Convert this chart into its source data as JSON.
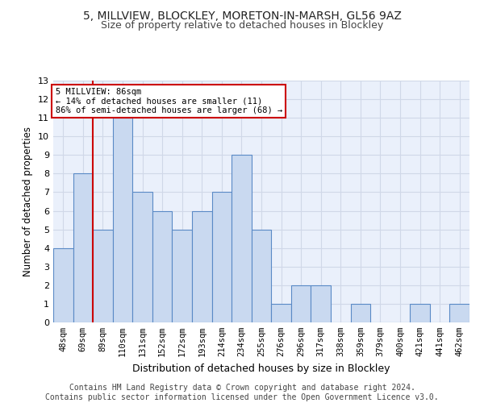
{
  "title1": "5, MILLVIEW, BLOCKLEY, MORETON-IN-MARSH, GL56 9AZ",
  "title2": "Size of property relative to detached houses in Blockley",
  "xlabel": "Distribution of detached houses by size in Blockley",
  "ylabel": "Number of detached properties",
  "categories": [
    "48sqm",
    "69sqm",
    "89sqm",
    "110sqm",
    "131sqm",
    "152sqm",
    "172sqm",
    "193sqm",
    "214sqm",
    "234sqm",
    "255sqm",
    "276sqm",
    "296sqm",
    "317sqm",
    "338sqm",
    "359sqm",
    "379sqm",
    "400sqm",
    "421sqm",
    "441sqm",
    "462sqm"
  ],
  "values": [
    4,
    8,
    5,
    11,
    7,
    6,
    5,
    6,
    7,
    9,
    5,
    1,
    2,
    2,
    0,
    1,
    0,
    0,
    1,
    0,
    1
  ],
  "bar_color": "#c9d9f0",
  "bar_edge_color": "#5a8ac6",
  "vline_index": 2,
  "vline_color": "#cc0000",
  "annotation_text": "5 MILLVIEW: 86sqm\n← 14% of detached houses are smaller (11)\n86% of semi-detached houses are larger (68) →",
  "annotation_box_color": "#ffffff",
  "annotation_box_edge_color": "#cc0000",
  "ylim": [
    0,
    13
  ],
  "yticks": [
    0,
    1,
    2,
    3,
    4,
    5,
    6,
    7,
    8,
    9,
    10,
    11,
    12,
    13
  ],
  "grid_color": "#d0d8e8",
  "background_color": "#eaf0fb",
  "footer": "Contains HM Land Registry data © Crown copyright and database right 2024.\nContains public sector information licensed under the Open Government Licence v3.0.",
  "title1_fontsize": 10,
  "title2_fontsize": 9,
  "xlabel_fontsize": 9,
  "ylabel_fontsize": 8.5,
  "footer_fontsize": 7,
  "tick_fontsize": 7.5,
  "ann_fontsize": 7.5
}
